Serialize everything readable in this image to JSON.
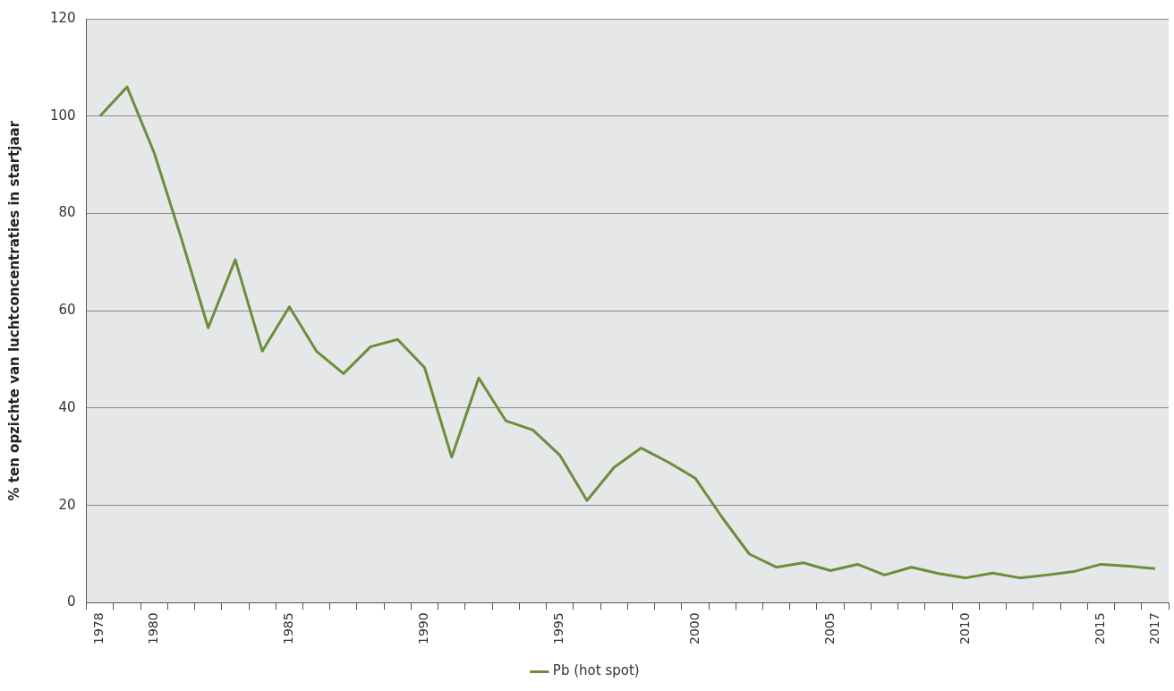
{
  "chart_data": {
    "type": "line",
    "ylabel": "% ten opzichte van luchtconcentraties in startjaar",
    "categories": [
      "1978",
      null,
      "1980",
      null,
      null,
      null,
      null,
      "1985",
      null,
      null,
      null,
      null,
      "1990",
      null,
      null,
      null,
      null,
      "1995",
      null,
      null,
      null,
      null,
      "2000",
      null,
      null,
      null,
      null,
      "2005",
      null,
      null,
      null,
      null,
      "2010",
      null,
      null,
      null,
      null,
      "2015",
      null,
      "2017"
    ],
    "series": [
      {
        "name": "Pb (hot spot)",
        "color": "#6b8e3a",
        "values": [
          100,
          106,
          92.5,
          75,
          56.5,
          70.5,
          51.7,
          60.8,
          51.7,
          47.1,
          52.6,
          54.1,
          48.3,
          29.9,
          46.2,
          37.4,
          35.5,
          30.3,
          21.0,
          27.8,
          31.8,
          28.9,
          25.6,
          17.5,
          10.0,
          7.3,
          8.2,
          6.6,
          7.9,
          5.7,
          7.3,
          6.0,
          5.1,
          6.1,
          5.1,
          5.7,
          6.4,
          7.9,
          7.5,
          7.0
        ]
      }
    ],
    "ylim": [
      0,
      120
    ],
    "yticks": [
      0,
      20,
      40,
      60,
      80,
      100,
      120
    ],
    "grid": "y",
    "legend": "bottom",
    "marker": "none",
    "line_style": "solid"
  }
}
